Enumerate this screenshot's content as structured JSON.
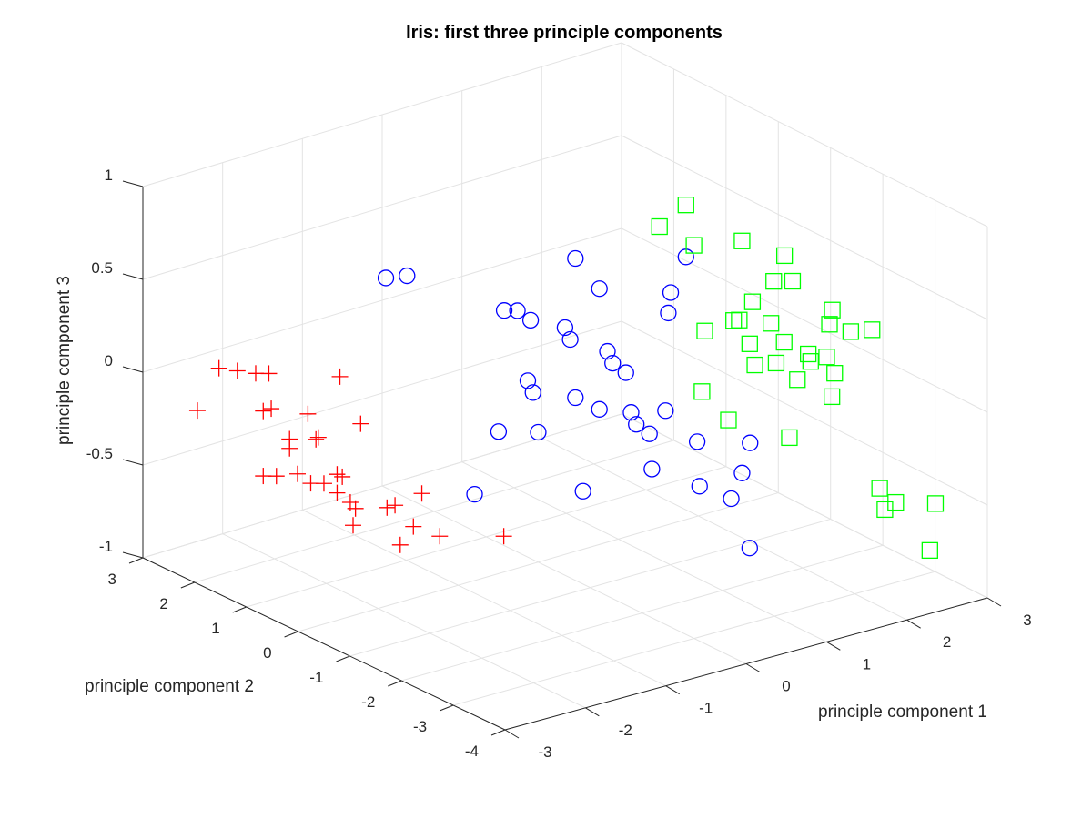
{
  "chart_data": {
    "type": "scatter",
    "title": "Iris: first three principle components",
    "xlabel": "principle component 1",
    "ylabel": "principle component 2",
    "zlabel": "principle component 3",
    "xlim": [
      -3,
      3
    ],
    "ylim": [
      -4,
      3
    ],
    "zlim": [
      -1,
      1
    ],
    "x_ticks": [
      -3,
      -2,
      -1,
      0,
      1,
      2,
      3
    ],
    "y_ticks": [
      -4,
      -3,
      -2,
      -1,
      0,
      1,
      2,
      3
    ],
    "z_ticks": [
      -1,
      -0.5,
      0,
      0.5,
      1
    ],
    "x_tick_labels": [
      "-3",
      "-2",
      "-1",
      "0",
      "1",
      "2",
      "3"
    ],
    "y_tick_labels": [
      "-4",
      "-3",
      "-2",
      "-1",
      "0",
      "1",
      "2",
      "3"
    ],
    "z_tick_labels": [
      "-1",
      "-0.5",
      "0",
      "0.5",
      "1"
    ],
    "grid": true,
    "view": "3d-perspective",
    "series": [
      {
        "marker": "plus",
        "color": "#ff0000",
        "points": [
          [
            -2.9,
            2.1,
            -0.1
          ],
          [
            -2.5,
            2.3,
            0.05
          ],
          [
            -2.4,
            2.1,
            0.05
          ],
          [
            -2.3,
            1.9,
            0.05
          ],
          [
            -2.2,
            1.8,
            0.05
          ],
          [
            -2.4,
            1.6,
            -0.1
          ],
          [
            -2.3,
            1.6,
            -0.1
          ],
          [
            -2.1,
            1.2,
            -0.1
          ],
          [
            -2.2,
            1.4,
            -0.25
          ],
          [
            -2.2,
            1.4,
            -0.3
          ],
          [
            -2.0,
            1.2,
            -0.25
          ],
          [
            -2.1,
            1.0,
            -0.2
          ],
          [
            -1.7,
            1.2,
            0.05
          ],
          [
            -1.7,
            0.8,
            -0.15
          ],
          [
            -2.4,
            1.6,
            -0.45
          ],
          [
            -2.3,
            1.5,
            -0.45
          ],
          [
            -2.1,
            1.4,
            -0.45
          ],
          [
            -2.0,
            1.3,
            -0.5
          ],
          [
            -1.9,
            1.2,
            -0.5
          ],
          [
            -1.8,
            1.1,
            -0.45
          ],
          [
            -1.8,
            1.0,
            -0.45
          ],
          [
            -1.8,
            1.1,
            -0.55
          ],
          [
            -1.7,
            1.0,
            -0.6
          ],
          [
            -1.7,
            0.9,
            -0.62
          ],
          [
            -1.5,
            0.6,
            -0.6
          ],
          [
            -1.4,
            0.6,
            -0.6
          ],
          [
            -1.0,
            0.7,
            -0.6
          ],
          [
            -1.3,
            0.4,
            -0.7
          ],
          [
            -1.4,
            0.5,
            -0.8
          ],
          [
            -1.1,
            0.2,
            -0.75
          ],
          [
            -0.3,
            0.2,
            -0.85
          ],
          [
            -1.6,
            1.1,
            -0.75
          ]
        ]
      },
      {
        "marker": "circle",
        "color": "#0000ff",
        "points": [
          [
            0.4,
            -0.1,
            0.6
          ],
          [
            -0.8,
            1.7,
            0.4
          ],
          [
            -0.6,
            1.6,
            0.4
          ],
          [
            -0.1,
            0.5,
            0.3
          ],
          [
            0.0,
            0.4,
            0.3
          ],
          [
            0.1,
            0.3,
            0.25
          ],
          [
            0.7,
            -0.1,
            0.4
          ],
          [
            1.2,
            -0.7,
            0.4
          ],
          [
            0.4,
            0.1,
            0.2
          ],
          [
            0.4,
            0.0,
            0.15
          ],
          [
            1.3,
            -0.5,
            0.25
          ],
          [
            0.8,
            -0.1,
            0.05
          ],
          [
            0.8,
            -0.2,
            0.0
          ],
          [
            0.9,
            -0.3,
            -0.05
          ],
          [
            0.0,
            0.2,
            -0.05
          ],
          [
            0.0,
            0.1,
            -0.1
          ],
          [
            0.4,
            -0.1,
            -0.15
          ],
          [
            0.7,
            -0.1,
            -0.25
          ],
          [
            0.9,
            -0.4,
            -0.25
          ],
          [
            1.2,
            -0.6,
            -0.25
          ],
          [
            0.9,
            -0.5,
            -0.3
          ],
          [
            1.0,
            -0.6,
            -0.35
          ],
          [
            1.4,
            -0.9,
            -0.4
          ],
          [
            1.8,
            -1.3,
            -0.4
          ],
          [
            -0.3,
            0.3,
            -0.3
          ],
          [
            0.0,
            0.0,
            -0.3
          ],
          [
            0.3,
            -0.4,
            -0.6
          ],
          [
            0.9,
            -0.8,
            -0.5
          ],
          [
            1.3,
            -1.1,
            -0.6
          ],
          [
            1.5,
            -1.4,
            -0.65
          ],
          [
            1.7,
            -1.3,
            -0.55
          ],
          [
            -0.6,
            0.3,
            -0.6
          ],
          [
            1.6,
            -1.6,
            -0.9
          ],
          [
            1.0,
            -1.3,
            0.7
          ]
        ]
      },
      {
        "marker": "square",
        "color": "#00ff00",
        "points": [
          [
            1.0,
            -1.3,
            0.98
          ],
          [
            0.8,
            -1.1,
            0.86
          ],
          [
            1.1,
            -1.3,
            0.75
          ],
          [
            1.7,
            -1.3,
            0.7
          ],
          [
            2.1,
            -1.5,
            0.6
          ],
          [
            1.9,
            -1.6,
            0.5
          ],
          [
            2.2,
            -1.5,
            0.45
          ],
          [
            2.5,
            -1.8,
            0.3
          ],
          [
            2.8,
            -2.1,
            0.2
          ],
          [
            2.4,
            -1.9,
            0.25
          ],
          [
            2.6,
            -2.0,
            0.2
          ],
          [
            1.7,
            -1.5,
            0.4
          ],
          [
            1.6,
            -1.4,
            0.3
          ],
          [
            1.8,
            -1.7,
            0.3
          ],
          [
            1.9,
            -1.8,
            0.2
          ],
          [
            2.3,
            -2.0,
            0.1
          ],
          [
            2.4,
            -2.0,
            0.0
          ],
          [
            2.3,
            -2.1,
            -0.1
          ],
          [
            2.2,
            -1.8,
            0.1
          ],
          [
            1.6,
            -1.6,
            0.2
          ],
          [
            1.6,
            -1.7,
            0.1
          ],
          [
            1.8,
            -1.8,
            0.1
          ],
          [
            2.0,
            -1.9,
            0.0
          ],
          [
            2.1,
            -2.0,
            0.1
          ],
          [
            1.2,
            -1.3,
            -0.05
          ],
          [
            1.4,
            -1.5,
            -0.2
          ],
          [
            1.9,
            -1.9,
            -0.3
          ],
          [
            2.7,
            -2.4,
            -0.6
          ],
          [
            2.9,
            -2.4,
            -0.7
          ],
          [
            2.7,
            -2.5,
            -0.7
          ],
          [
            3.2,
            -2.7,
            -0.7
          ],
          [
            3.0,
            -2.9,
            -0.9
          ],
          [
            1.4,
            -1.6,
            0.35
          ],
          [
            1.3,
            -1.2,
            0.25
          ]
        ]
      }
    ]
  }
}
